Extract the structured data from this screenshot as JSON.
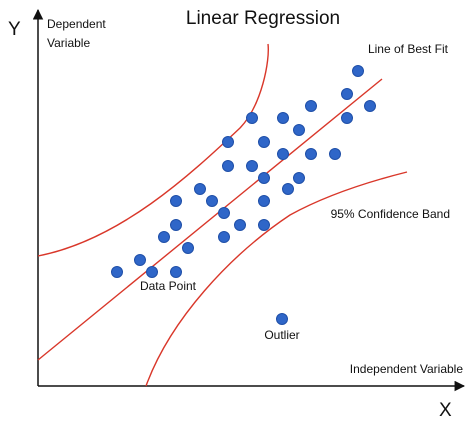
{
  "title": "Linear Regression",
  "y_axis": {
    "letter": "Y",
    "label_line1": "Dependent",
    "label_line2": "Variable"
  },
  "x_axis": {
    "letter": "X",
    "label": "Independent Variable"
  },
  "annotations": {
    "best_fit": "Line of Best Fit",
    "confidence_band": "95% Confidence Band",
    "data_point": "Data Point",
    "outlier": "Outlier"
  },
  "colors": {
    "axis": "#111111",
    "regression_line": "#d9372a",
    "point_fill": "#2f66c8",
    "point_stroke": "#1f4fa8"
  }
}
